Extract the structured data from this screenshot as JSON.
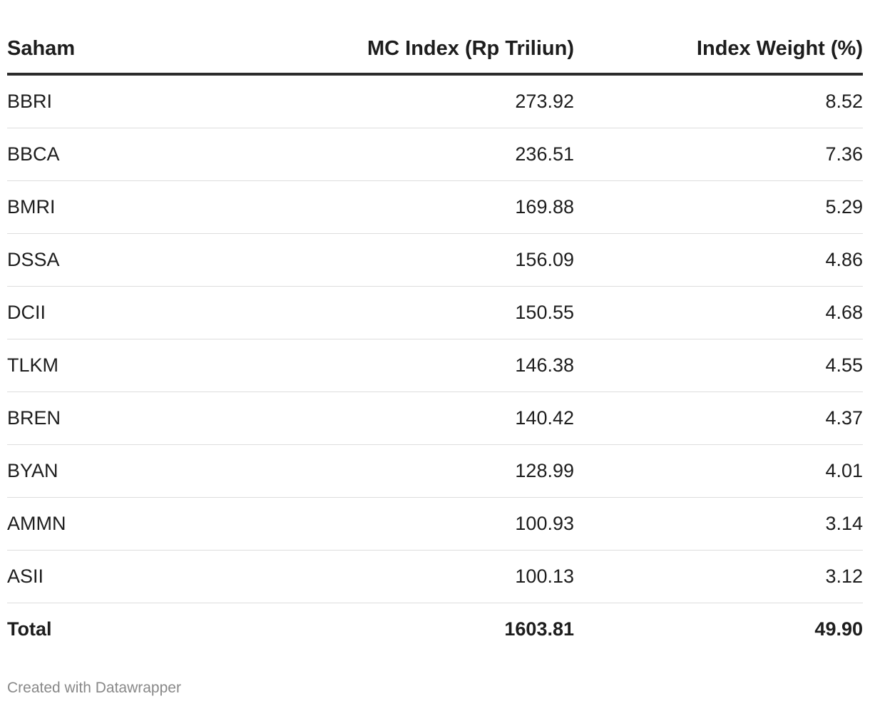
{
  "chart_data": {
    "type": "table",
    "columns": [
      "Saham",
      "MC Index (Rp Triliun)",
      "Index Weight (%)"
    ],
    "rows": [
      {
        "saham": "BBRI",
        "mc_index": "273.92",
        "weight": "8.52"
      },
      {
        "saham": "BBCA",
        "mc_index": "236.51",
        "weight": "7.36"
      },
      {
        "saham": "BMRI",
        "mc_index": "169.88",
        "weight": "5.29"
      },
      {
        "saham": "DSSA",
        "mc_index": "156.09",
        "weight": "4.86"
      },
      {
        "saham": "DCII",
        "mc_index": "150.55",
        "weight": "4.68"
      },
      {
        "saham": "TLKM",
        "mc_index": "146.38",
        "weight": "4.55"
      },
      {
        "saham": "BREN",
        "mc_index": "140.42",
        "weight": "4.37"
      },
      {
        "saham": "BYAN",
        "mc_index": "128.99",
        "weight": "4.01"
      },
      {
        "saham": "AMMN",
        "mc_index": "100.93",
        "weight": "3.14"
      },
      {
        "saham": "ASII",
        "mc_index": "100.13",
        "weight": "3.12"
      }
    ],
    "total": {
      "label": "Total",
      "mc_index": "1603.81",
      "weight": "49.90"
    }
  },
  "footer": {
    "credit": "Created with Datawrapper"
  }
}
